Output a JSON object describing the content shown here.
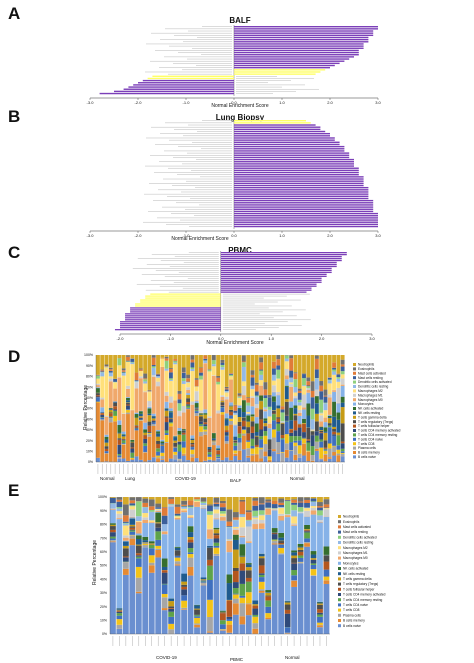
{
  "panels": {
    "A": {
      "letter": "A",
      "title": "BALF",
      "xlabel": "Normal Enrichment Score"
    },
    "B": {
      "letter": "B",
      "title": "Lung Biopsy",
      "xlabel": "Normal Enrichment Score"
    },
    "C": {
      "letter": "C",
      "title": "PBMC",
      "xlabel": "Normal Enrichment Score"
    },
    "D": {
      "letter": "D",
      "ylabel": "Relative Percentage",
      "groups": [
        "Normal",
        "Lung",
        "COVID-19",
        "BALF",
        "Normal"
      ]
    },
    "E": {
      "letter": "E",
      "ylabel": "Relative Percentage",
      "groups": [
        "COVID-19",
        "PBMC",
        "Normal"
      ]
    }
  },
  "colors": {
    "purple": "#7b3fb8",
    "yellow": "#ffff66"
  },
  "chart_data": [
    {
      "type": "bar",
      "orientation": "horizontal",
      "title": "BALF",
      "xlabel": "Normal Enrichment Score",
      "xlim": [
        -3,
        3
      ],
      "xticks": [
        -3,
        -2,
        -1,
        0,
        1,
        2,
        3
      ],
      "values": [
        3.0,
        3.0,
        2.9,
        2.9,
        2.9,
        2.8,
        2.8,
        2.8,
        2.7,
        2.7,
        2.7,
        2.6,
        2.6,
        2.6,
        2.5,
        2.4,
        2.3,
        2.2,
        2.1,
        2.0,
        1.9,
        1.8,
        1.7,
        -1.7,
        -1.8,
        -1.9,
        -2.0,
        -2.1,
        -2.2,
        -2.3,
        -2.5,
        -2.8
      ],
      "colors": [
        "purple",
        "purple",
        "purple",
        "purple",
        "purple",
        "purple",
        "purple",
        "purple",
        "purple",
        "purple",
        "purple",
        "purple",
        "purple",
        "purple",
        "purple",
        "purple",
        "purple",
        "purple",
        "purple",
        "purple",
        "yellow",
        "yellow",
        "yellow",
        "yellow",
        "yellow",
        "purple",
        "purple",
        "purple",
        "purple",
        "purple",
        "purple",
        "purple"
      ]
    },
    {
      "type": "bar",
      "orientation": "horizontal",
      "title": "Lung Biopsy",
      "xlabel": "Normal Enrichment Score",
      "xlim": [
        -3,
        3
      ],
      "xticks": [
        -3,
        -2,
        -1,
        0,
        1,
        2,
        3
      ],
      "values": [
        1.5,
        1.6,
        1.7,
        1.8,
        1.8,
        1.9,
        2.0,
        2.0,
        2.1,
        2.1,
        2.2,
        2.2,
        2.3,
        2.3,
        2.3,
        2.4,
        2.4,
        2.4,
        2.5,
        2.5,
        2.5,
        2.5,
        2.6,
        2.6,
        2.6,
        2.6,
        2.7,
        2.7,
        2.7,
        2.7,
        2.7,
        2.8,
        2.8,
        2.8,
        2.8,
        2.8,
        2.8,
        2.9,
        2.9,
        2.9,
        2.9,
        2.9,
        2.9,
        3.0,
        3.0,
        3.0,
        3.0,
        3.0,
        3.0,
        3.0
      ],
      "colors": [
        "yellow",
        "yellow",
        "purple",
        "purple",
        "purple",
        "purple",
        "purple",
        "purple",
        "purple",
        "purple",
        "purple",
        "purple",
        "purple",
        "purple",
        "purple",
        "purple",
        "purple",
        "purple",
        "purple",
        "purple",
        "purple",
        "purple",
        "purple",
        "purple",
        "purple",
        "purple",
        "purple",
        "purple",
        "purple",
        "purple",
        "purple",
        "purple",
        "purple",
        "purple",
        "purple",
        "purple",
        "purple",
        "purple",
        "purple",
        "purple",
        "purple",
        "purple",
        "purple",
        "purple",
        "purple",
        "purple",
        "purple",
        "purple",
        "purple",
        "purple"
      ]
    },
    {
      "type": "bar",
      "orientation": "horizontal",
      "title": "PBMC",
      "xlabel": "Normal Enrichment Score",
      "xlim": [
        -2,
        3
      ],
      "xticks": [
        -2,
        -1,
        0,
        1,
        2,
        3
      ],
      "values": [
        2.5,
        2.5,
        2.4,
        2.4,
        2.4,
        2.3,
        2.3,
        2.3,
        2.2,
        2.2,
        2.2,
        2.1,
        2.1,
        2.0,
        2.0,
        2.0,
        1.9,
        1.9,
        1.8,
        1.8,
        1.7,
        -1.4,
        -1.5,
        -1.5,
        -1.6,
        -1.6,
        -1.7,
        -1.7,
        -1.8,
        -1.8,
        -1.8,
        -1.9,
        -1.9,
        -1.9,
        -1.9,
        -2.0,
        -2.0,
        -2.0,
        -2.0,
        -2.1
      ],
      "colors": [
        "purple",
        "purple",
        "purple",
        "purple",
        "purple",
        "purple",
        "purple",
        "purple",
        "purple",
        "purple",
        "purple",
        "purple",
        "purple",
        "purple",
        "purple",
        "purple",
        "purple",
        "purple",
        "purple",
        "purple",
        "purple",
        "yellow",
        "yellow",
        "yellow",
        "yellow",
        "yellow",
        "yellow",
        "yellow",
        "purple",
        "purple",
        "purple",
        "purple",
        "purple",
        "purple",
        "purple",
        "purple",
        "purple",
        "purple",
        "purple",
        "purple"
      ]
    },
    {
      "type": "bar",
      "stacked": true,
      "ylabel": "Relative Percentage",
      "ylim": [
        0,
        100
      ],
      "yticks": [
        "0%",
        "10%",
        "20%",
        "30%",
        "40%",
        "50%",
        "60%",
        "70%",
        "80%",
        "90%",
        "100%"
      ],
      "groups": [
        "Normal",
        "Lung",
        "COVID-19",
        "BALF",
        "Normal"
      ],
      "n_samples": 58,
      "legend": [
        "B cells naive",
        "B cells memory",
        "Plasma cells",
        "T cells CD8",
        "T cells CD4 naive",
        "T cells CD4 memory resting",
        "T cells CD4 memory activated",
        "T cells follicular helper",
        "T cells regulatory (Tregs)",
        "T cells gamma delta",
        "NK cells resting",
        "NK cells activated",
        "Monocytes",
        "Macrophages M0",
        "Macrophages M1",
        "Macrophages M2",
        "Dendritic cells resting",
        "Dendritic cells activated",
        "Mast cells resting",
        "Mast cells activated",
        "Eosinophils",
        "Neutrophils"
      ]
    },
    {
      "type": "bar",
      "stacked": true,
      "ylabel": "Relative Percentage",
      "ylim": [
        0,
        100
      ],
      "yticks": [
        "0%",
        "10%",
        "20%",
        "30%",
        "40%",
        "50%",
        "60%",
        "70%",
        "80%",
        "90%",
        "100%"
      ],
      "groups": [
        "COVID-19",
        "PBMC",
        "Normal"
      ],
      "n_samples": 34,
      "legend": [
        "B cells naive",
        "B cells memory",
        "Plasma cells",
        "T cells CD8",
        "T cells CD4 naive",
        "T cells CD4 memory resting",
        "T cells CD4 memory activated",
        "T cells follicular helper",
        "T cells regulatory (Tregs)",
        "T cells gamma delta",
        "NK cells resting",
        "NK cells activated",
        "Monocytes",
        "Macrophages M0",
        "Macrophages M1",
        "Macrophages M2",
        "Dendritic cells resting",
        "Dendritic cells activated",
        "Mast cells resting",
        "Mast cells activated",
        "Eosinophils",
        "Neutrophils"
      ]
    }
  ]
}
